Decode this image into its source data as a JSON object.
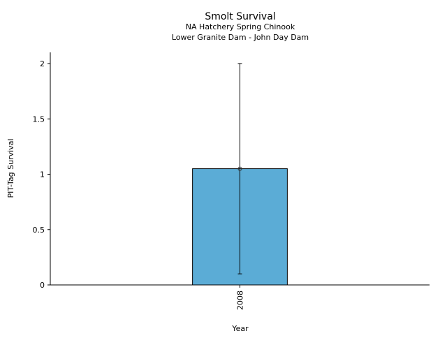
{
  "chart_data": {
    "type": "bar",
    "title": "Smolt Survival",
    "subtitle_lines": [
      "NA Hatchery Spring Chinook",
      "Lower Granite Dam - John Day Dam"
    ],
    "xlabel": "Year",
    "ylabel": "PIT-Tag Survival",
    "categories": [
      "2008"
    ],
    "values": [
      1.05
    ],
    "error_low": [
      0.1
    ],
    "error_high": [
      2.0
    ],
    "ylim": [
      0,
      2.1
    ],
    "yticks": [
      0,
      0.5,
      1,
      1.5,
      2
    ],
    "ytick_labels": [
      "0",
      "0.5",
      "1",
      "1.5",
      "2"
    ],
    "grid": false,
    "bar_color": "#5bacd6"
  }
}
